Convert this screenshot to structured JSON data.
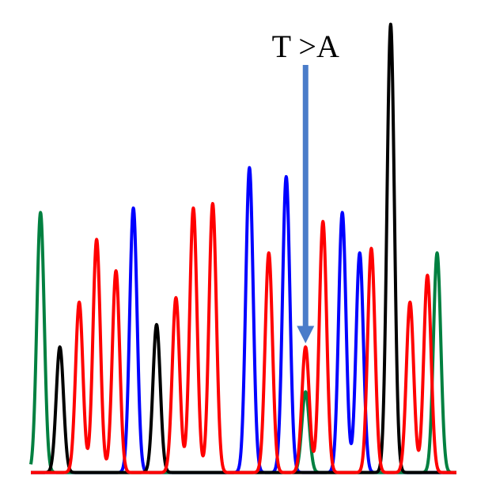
{
  "chart_data": {
    "type": "line",
    "title": "",
    "xlabel": "",
    "ylabel": "",
    "xlim": [
      0,
      22
    ],
    "ylim": [
      0,
      100
    ],
    "grid": false,
    "legend": "none",
    "annotation": {
      "text": "T >A",
      "x": 14.2,
      "y": 28,
      "color": "#4a7cc9"
    },
    "series": [
      {
        "color": "#008040",
        "peaks": [
          {
            "x": 0.5,
            "h": 58
          },
          {
            "x": 14.2,
            "h": 18
          },
          {
            "x": 21.0,
            "h": 49
          }
        ]
      },
      {
        "color": "#000000",
        "peaks": [
          {
            "x": 1.5,
            "h": 28
          },
          {
            "x": 6.5,
            "h": 33
          },
          {
            "x": 18.6,
            "h": 100
          }
        ]
      },
      {
        "color": "#ff0000",
        "peaks": [
          {
            "x": 2.5,
            "h": 38
          },
          {
            "x": 3.4,
            "h": 52
          },
          {
            "x": 4.4,
            "h": 45
          },
          {
            "x": 7.5,
            "h": 39
          },
          {
            "x": 8.4,
            "h": 59
          },
          {
            "x": 9.4,
            "h": 60
          },
          {
            "x": 12.3,
            "h": 49
          },
          {
            "x": 14.2,
            "h": 28
          },
          {
            "x": 15.1,
            "h": 56
          },
          {
            "x": 17.6,
            "h": 50
          },
          {
            "x": 19.6,
            "h": 38
          },
          {
            "x": 20.5,
            "h": 44
          }
        ]
      },
      {
        "color": "#0000ff",
        "peaks": [
          {
            "x": 5.3,
            "h": 59
          },
          {
            "x": 11.3,
            "h": 68
          },
          {
            "x": 13.2,
            "h": 66
          },
          {
            "x": 16.1,
            "h": 58
          },
          {
            "x": 17.0,
            "h": 49
          }
        ]
      }
    ]
  }
}
